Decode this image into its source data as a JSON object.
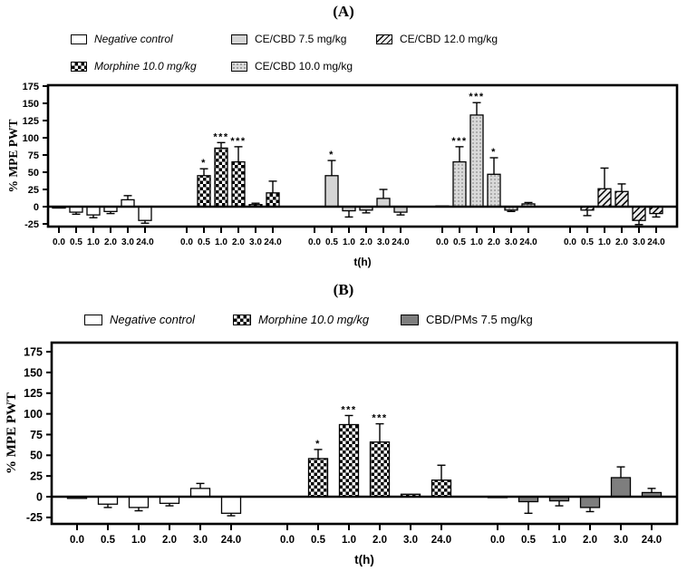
{
  "figure": {
    "panels": [
      {
        "label": "(A)",
        "legend": [
          {
            "name": "Negative control",
            "pattern": "open",
            "italic": true
          },
          {
            "name": "Morphine 10.0 mg/kg",
            "pattern": "checker",
            "italic": true
          },
          {
            "name": "CE/CBD 7.5 mg/kg",
            "pattern": "solid-light",
            "italic": false
          },
          {
            "name": "CE/CBD 10.0 mg/kg",
            "pattern": "dots",
            "italic": false
          },
          {
            "name": "CE/CBD 12.0 mg/kg",
            "pattern": "hatch",
            "italic": false
          }
        ]
      },
      {
        "label": "(B)",
        "legend": [
          {
            "name": "Negative control",
            "pattern": "open",
            "italic": true
          },
          {
            "name": "Morphine 10.0 mg/kg",
            "pattern": "checker",
            "italic": true
          },
          {
            "name": "CBD/PMs 7.5 mg/kg",
            "pattern": "solid-dark",
            "italic": false
          }
        ]
      }
    ]
  },
  "colors": {
    "bar_outline": "#000000",
    "light_gray": "#d4d4d4",
    "dark_gray": "#7e7e7e",
    "dot_bg": "#d9d9d9",
    "dot_color": "#8c8c8c",
    "hatch_bg": "#ededed",
    "background": "#ffffff"
  },
  "chart_data": [
    {
      "type": "bar",
      "panel": "A",
      "title": "(A)",
      "xlabel": "t(h)",
      "ylabel": "% MPE PWT",
      "categories": [
        "0.0",
        "0.5",
        "1.0",
        "2.0",
        "3.0",
        "24.0"
      ],
      "yticks": [
        -25,
        0,
        25,
        50,
        75,
        100,
        125,
        150,
        175
      ],
      "ylim": [
        -29,
        176
      ],
      "grid": false,
      "legend_position": "top",
      "series": [
        {
          "name": "Negative control",
          "pattern": "open",
          "values": [
            -2,
            -8,
            -12,
            -7,
            10,
            -20
          ],
          "errors": [
            1,
            3,
            4,
            3,
            6,
            4
          ],
          "sig": [
            "",
            "",
            "",
            "",
            "",
            ""
          ]
        },
        {
          "name": "Morphine 10.0 mg/kg",
          "pattern": "checker",
          "values": [
            0,
            45,
            85,
            65,
            3,
            20
          ],
          "errors": [
            1,
            10,
            8,
            22,
            2,
            17
          ],
          "sig": [
            "",
            "*",
            "***",
            "***",
            "",
            ""
          ]
        },
        {
          "name": "CE/CBD 7.5 mg/kg",
          "pattern": "solid-light",
          "values": [
            0,
            45,
            -6,
            -5,
            12,
            -8
          ],
          "errors": [
            0,
            22,
            9,
            4,
            13,
            4
          ],
          "sig": [
            "",
            "*",
            "",
            "",
            "",
            ""
          ]
        },
        {
          "name": "CE/CBD 10.0 mg/kg",
          "pattern": "dots",
          "values": [
            1,
            65,
            133,
            47,
            -5,
            4
          ],
          "errors": [
            1,
            22,
            18,
            24,
            2,
            2
          ],
          "sig": [
            "",
            "***",
            "***",
            "*",
            "",
            ""
          ]
        },
        {
          "name": "CE/CBD 12.0 mg/kg",
          "pattern": "hatch",
          "values": [
            0,
            -5,
            26,
            22,
            -20,
            -10
          ],
          "errors": [
            1,
            8,
            30,
            11,
            6,
            5
          ],
          "sig": [
            "",
            "",
            "",
            "",
            "",
            ""
          ]
        }
      ]
    },
    {
      "type": "bar",
      "panel": "B",
      "title": "(B)",
      "xlabel": "t(h)",
      "ylabel": "% MPE PWT",
      "categories": [
        "0.0",
        "0.5",
        "1.0",
        "2.0",
        "3.0",
        "24.0"
      ],
      "yticks": [
        -25,
        0,
        25,
        50,
        75,
        100,
        125,
        150,
        175
      ],
      "ylim": [
        -33,
        187
      ],
      "grid": false,
      "legend_position": "top",
      "series": [
        {
          "name": "Negative control",
          "pattern": "open",
          "values": [
            -2,
            -9,
            -13,
            -8,
            10,
            -20
          ],
          "errors": [
            1,
            4,
            4,
            3,
            6,
            3
          ],
          "sig": [
            "",
            "",
            "",
            "",
            "",
            ""
          ]
        },
        {
          "name": "Morphine 10.0 mg/kg",
          "pattern": "checker",
          "values": [
            0,
            46,
            87,
            66,
            3,
            20
          ],
          "errors": [
            1,
            11,
            11,
            22,
            1,
            18
          ],
          "sig": [
            "",
            "*",
            "***",
            "***",
            "",
            ""
          ]
        },
        {
          "name": "CBD/PMs 7.5 mg/kg",
          "pattern": "solid-dark",
          "values": [
            -1,
            -6,
            -5,
            -13,
            23,
            5
          ],
          "errors": [
            0,
            14,
            6,
            5,
            13,
            5
          ],
          "sig": [
            "",
            "",
            "",
            "",
            "",
            ""
          ]
        }
      ]
    }
  ]
}
